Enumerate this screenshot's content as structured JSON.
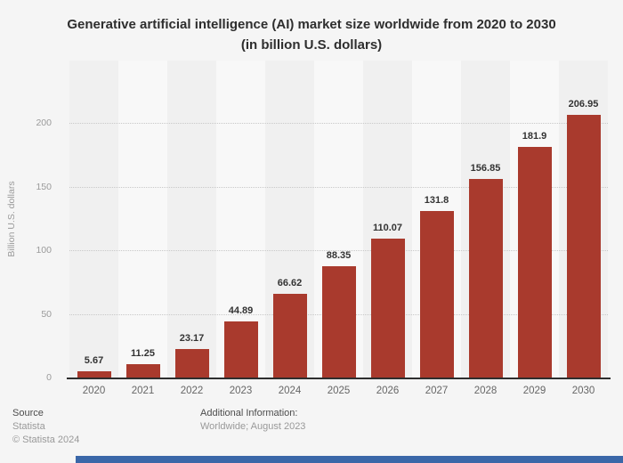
{
  "chart_data": {
    "type": "bar",
    "title": "Generative artificial intelligence (AI) market size worldwide from 2020 to 2030 (in billion U.S. dollars)",
    "categories": [
      "2020",
      "2021",
      "2022",
      "2023",
      "2024",
      "2025",
      "2026",
      "2027",
      "2028",
      "2029",
      "2030"
    ],
    "values": [
      5.67,
      11.25,
      23.17,
      44.89,
      66.62,
      88.35,
      110.07,
      131.8,
      156.85,
      181.9,
      206.95
    ],
    "value_labels": [
      "5.67",
      "11.25",
      "23.17",
      "44.89",
      "66.62",
      "88.35",
      "110.07",
      "131.8",
      "156.85",
      "181.9",
      "206.95"
    ],
    "xlabel": "",
    "ylabel": "Billion U.S. dollars",
    "yticks": [
      0,
      50,
      100,
      150,
      200
    ],
    "ylim": [
      0,
      249
    ],
    "grid": "horizontal-dotted",
    "legend": "none",
    "bar_color": "#a93a2d",
    "stripe_color_even": "#f0f0f0",
    "stripe_color_odd": "#f8f8f8"
  },
  "footer": {
    "source_label": "Source",
    "source_value": "Statista",
    "copyright": "© Statista 2024",
    "additional_info_label": "Additional Information:",
    "additional_info_value": "Worldwide; August 2023"
  },
  "colors": {
    "background": "#f5f5f5",
    "accent_bar": "#a93a2d",
    "scrollbar_blue": "#3a67a8",
    "axis_line": "#2e2e2e"
  }
}
